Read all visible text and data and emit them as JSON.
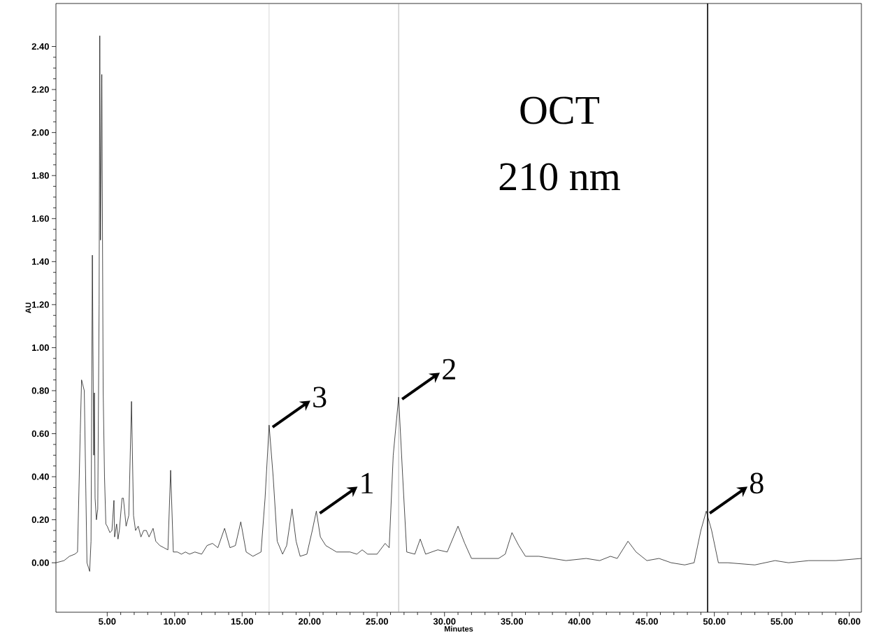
{
  "chart_data": {
    "type": "line",
    "xlabel": "Minutes",
    "ylabel": "AU",
    "annotations": [
      "OCT",
      "210 nm",
      {
        "text": "3",
        "x": 17.0,
        "y": 0.64
      },
      {
        "text": "2",
        "x": 26.6,
        "y": 0.77
      },
      {
        "text": "1",
        "x": 20.5,
        "y": 0.24
      },
      {
        "text": "8",
        "x": 49.4,
        "y": 0.24
      }
    ],
    "xlim": [
      1.2,
      60.9
    ],
    "ylim": [
      -0.23,
      2.6
    ],
    "xticks": [
      {
        "value": 5,
        "label": "5.00"
      },
      {
        "value": 10,
        "label": "10.00"
      },
      {
        "value": 15,
        "label": "15.00"
      },
      {
        "value": 20,
        "label": "20.00"
      },
      {
        "value": 25,
        "label": "25.00"
      },
      {
        "value": 30,
        "label": "30.00"
      },
      {
        "value": 35,
        "label": "35.00"
      },
      {
        "value": 40,
        "label": "40.00"
      },
      {
        "value": 45,
        "label": "45.00"
      },
      {
        "value": 50,
        "label": "50.00"
      },
      {
        "value": 55,
        "label": "55.00"
      },
      {
        "value": 60,
        "label": "60.00"
      }
    ],
    "yticks": [
      {
        "value": 0,
        "label": "0.00"
      },
      {
        "value": 0.2,
        "label": "0.20"
      },
      {
        "value": 0.4,
        "label": "0.40"
      },
      {
        "value": 0.6,
        "label": "0.60"
      },
      {
        "value": 0.8,
        "label": "0.80"
      },
      {
        "value": 1.0,
        "label": "1.00"
      },
      {
        "value": 1.2,
        "label": "1.20"
      },
      {
        "value": 1.4,
        "label": "1.40"
      },
      {
        "value": 1.6,
        "label": "1.60"
      },
      {
        "value": 1.8,
        "label": "1.80"
      },
      {
        "value": 2.0,
        "label": "2.00"
      },
      {
        "value": 2.2,
        "label": "2.20"
      },
      {
        "value": 2.4,
        "label": "2.40"
      }
    ],
    "ref_lines": [
      {
        "axis": "x",
        "value": 17.0,
        "color": "#808080"
      },
      {
        "axis": "x",
        "value": 26.6,
        "color": "#808080"
      },
      {
        "axis": "x",
        "value": 49.5,
        "color": "#000000"
      }
    ],
    "marker": "none",
    "line_style": "solid",
    "series": [
      {
        "color": "#000000",
        "x": [
          1.2,
          1.8,
          2.2,
          2.6,
          2.8,
          3.0,
          3.1,
          3.3,
          3.4,
          3.5,
          3.7,
          3.8,
          3.9,
          4.0,
          4.05,
          4.1,
          4.2,
          4.3,
          4.4,
          4.45,
          4.5,
          4.6,
          4.7,
          4.8,
          4.9,
          5.0,
          5.2,
          5.35,
          5.5,
          5.55,
          5.7,
          5.8,
          5.9,
          6.1,
          6.2,
          6.4,
          6.6,
          6.8,
          6.95,
          7.1,
          7.3,
          7.5,
          7.7,
          7.9,
          8.1,
          8.4,
          8.6,
          8.9,
          9.2,
          9.5,
          9.7,
          9.9,
          10.2,
          10.5,
          10.8,
          11.1,
          11.5,
          12.0,
          12.4,
          12.8,
          13.2,
          13.7,
          14.1,
          14.5,
          14.9,
          15.3,
          15.8,
          16.4,
          16.7,
          17.0,
          17.3,
          17.6,
          18.0,
          18.3,
          18.7,
          19.0,
          19.3,
          19.8,
          20.2,
          20.5,
          20.8,
          21.2,
          22.0,
          23.0,
          23.5,
          23.9,
          24.3,
          25.0,
          25.6,
          25.9,
          26.2,
          26.6,
          26.9,
          27.2,
          27.8,
          28.2,
          28.6,
          29.5,
          30.2,
          31.0,
          31.5,
          32.0,
          34.0,
          34.5,
          35.0,
          35.5,
          36.0,
          37.0,
          38.0,
          39.0,
          40.5,
          41.5,
          42.3,
          42.8,
          43.6,
          44.2,
          45.0,
          45.9,
          46.8,
          47.8,
          48.5,
          49.0,
          49.4,
          49.8,
          50.3,
          51.0,
          53.0,
          54.5,
          55.5,
          57.0,
          59.0,
          60.9
        ],
        "values": [
          0.0,
          0.01,
          0.03,
          0.04,
          0.05,
          0.6,
          0.85,
          0.8,
          0.4,
          0.0,
          -0.04,
          0.1,
          1.43,
          0.5,
          0.79,
          0.3,
          0.2,
          0.25,
          1.2,
          2.45,
          1.5,
          2.27,
          0.8,
          0.4,
          0.18,
          0.17,
          0.14,
          0.15,
          0.29,
          0.12,
          0.18,
          0.11,
          0.15,
          0.3,
          0.3,
          0.17,
          0.22,
          0.75,
          0.22,
          0.15,
          0.17,
          0.12,
          0.15,
          0.15,
          0.12,
          0.16,
          0.1,
          0.08,
          0.07,
          0.06,
          0.43,
          0.05,
          0.05,
          0.04,
          0.05,
          0.04,
          0.05,
          0.04,
          0.08,
          0.09,
          0.07,
          0.16,
          0.07,
          0.08,
          0.19,
          0.05,
          0.03,
          0.05,
          0.3,
          0.64,
          0.4,
          0.1,
          0.04,
          0.08,
          0.25,
          0.1,
          0.03,
          0.04,
          0.15,
          0.24,
          0.12,
          0.08,
          0.05,
          0.05,
          0.04,
          0.06,
          0.04,
          0.04,
          0.09,
          0.07,
          0.5,
          0.77,
          0.4,
          0.05,
          0.04,
          0.11,
          0.04,
          0.06,
          0.05,
          0.17,
          0.09,
          0.02,
          0.02,
          0.04,
          0.14,
          0.08,
          0.03,
          0.03,
          0.02,
          0.01,
          0.02,
          0.01,
          0.03,
          0.02,
          0.1,
          0.05,
          0.01,
          0.02,
          0.0,
          -0.01,
          0.0,
          0.15,
          0.24,
          0.15,
          0.0,
          0.0,
          -0.01,
          0.01,
          0.0,
          0.01,
          0.01,
          0.02
        ]
      }
    ]
  }
}
